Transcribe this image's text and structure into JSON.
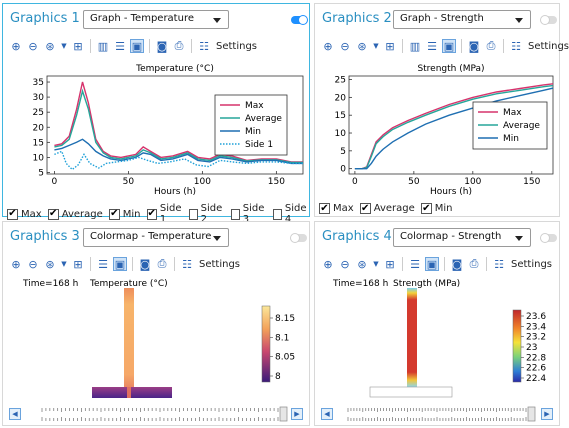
{
  "panels": {
    "g1": {
      "title": "Graphics 1",
      "dropdown": "Graph - Temperature",
      "toggle": "on",
      "checkboxes": [
        {
          "label": "Max",
          "checked": true
        },
        {
          "label": "Average",
          "checked": true
        },
        {
          "label": "Min",
          "checked": true
        },
        {
          "label": "Side 1",
          "checked": true
        },
        {
          "label": "Side 2",
          "checked": false
        },
        {
          "label": "Side 3",
          "checked": false
        },
        {
          "label": "Side 4",
          "checked": false
        }
      ]
    },
    "g2": {
      "title": "Graphics 2",
      "dropdown": "Graph - Strength",
      "toggle": "off",
      "checkboxes": [
        {
          "label": "Max",
          "checked": true
        },
        {
          "label": "Average",
          "checked": true
        },
        {
          "label": "Min",
          "checked": true
        }
      ]
    },
    "g3": {
      "title": "Graphics 3",
      "dropdown": "Colormap - Temperature",
      "toggle": "off",
      "time_label": "Time=168 h",
      "plot_label": "Temperature (°C)",
      "colorbar_ticks": [
        "8.15",
        "8.1",
        "8.05",
        "8"
      ]
    },
    "g4": {
      "title": "Graphics 4",
      "dropdown": "Colormap - Strength",
      "toggle": "off",
      "time_label": "Time=168 h",
      "plot_label": "Strength (MPa)",
      "colorbar_ticks": [
        "23.6",
        "23.4",
        "23.2",
        "23",
        "22.8",
        "22.6",
        "22.4"
      ]
    }
  },
  "toolbar": {
    "settings_label": "Settings"
  },
  "icons": [
    "zoom-in-icon",
    "zoom-out-icon",
    "zoom-box-icon",
    "zoom-extents-icon",
    "grid-icon",
    "legend-icon",
    "scene-light-icon",
    "camera-icon",
    "print-icon",
    "settings-icon",
    "play-back-icon",
    "play-forward-icon"
  ],
  "colors": {
    "accent": "#2a8fc1",
    "max": "#d6336c",
    "average": "#26a69a",
    "min": "#1f6fb2",
    "side1": "#1ea0d8"
  },
  "chart_data": [
    {
      "type": "line",
      "title": "Temperature (°C)",
      "xlabel": "Hours (h)",
      "ylabel": "",
      "xlim": [
        -5,
        168
      ],
      "ylim": [
        4.5,
        37
      ],
      "xticks": [
        0,
        50,
        100,
        150
      ],
      "yticks": [
        5,
        10,
        15,
        20,
        25,
        30,
        35
      ],
      "legend": "right",
      "series": [
        {
          "name": "Max",
          "color": "#d6336c",
          "x": [
            0,
            5,
            10,
            15,
            19,
            23,
            28,
            33,
            38,
            45,
            55,
            60,
            65,
            72,
            80,
            90,
            97,
            105,
            112,
            120,
            130,
            140,
            150,
            160,
            168
          ],
          "y": [
            14,
            14.5,
            17,
            26,
            35,
            28,
            16,
            12,
            10.5,
            10,
            11,
            13.5,
            12,
            10,
            10.5,
            12,
            10,
            9.5,
            11,
            10.5,
            9,
            9.5,
            9.5,
            8.5,
            8.5
          ]
        },
        {
          "name": "Average",
          "color": "#26a69a",
          "x": [
            0,
            5,
            10,
            15,
            19,
            23,
            28,
            33,
            38,
            45,
            55,
            60,
            65,
            72,
            80,
            90,
            97,
            105,
            112,
            120,
            130,
            140,
            150,
            160,
            168
          ],
          "y": [
            13.5,
            14,
            16,
            24,
            32,
            26,
            15,
            11.5,
            10,
            9.5,
            10.5,
            12.5,
            11.5,
            9.5,
            10,
            11.5,
            9.5,
            9,
            10.5,
            10,
            8.8,
            9.2,
            9.2,
            8.3,
            8.3
          ]
        },
        {
          "name": "Min",
          "color": "#1f6fb2",
          "x": [
            0,
            5,
            10,
            15,
            19,
            23,
            28,
            33,
            38,
            45,
            55,
            60,
            65,
            72,
            80,
            90,
            97,
            105,
            112,
            120,
            130,
            140,
            150,
            160,
            168
          ],
          "y": [
            12.5,
            13,
            14,
            15,
            16,
            14.5,
            12,
            10.5,
            9.5,
            9,
            10,
            11.5,
            11,
            9,
            9.5,
            11,
            9,
            8.5,
            10,
            9.5,
            8.5,
            9,
            9,
            8,
            8
          ]
        },
        {
          "name": "Side 1",
          "color": "#1ea0d8",
          "x": [
            0,
            5,
            8,
            12,
            16,
            20,
            24,
            30,
            35,
            42,
            50,
            57,
            63,
            70,
            78,
            88,
            96,
            104,
            112,
            120,
            130,
            140,
            150,
            160,
            168
          ],
          "y": [
            11,
            12,
            8,
            6,
            7.5,
            11,
            8,
            6.5,
            8,
            8.5,
            9,
            10,
            9,
            8,
            8.5,
            9.5,
            7.5,
            7,
            9,
            8.5,
            8,
            8.5,
            8.5,
            8,
            8
          ]
        }
      ]
    },
    {
      "type": "line",
      "title": "Strength (MPa)",
      "xlabel": "Hours (h)",
      "ylabel": "",
      "xlim": [
        -5,
        168
      ],
      "ylim": [
        -1.5,
        26
      ],
      "xticks": [
        0,
        50,
        100,
        150
      ],
      "yticks": [
        0,
        5,
        10,
        15,
        20,
        25
      ],
      "legend": "right",
      "series": [
        {
          "name": "Max",
          "color": "#d6336c",
          "x": [
            0,
            6,
            10,
            14,
            18,
            24,
            32,
            45,
            60,
            80,
            100,
            120,
            140,
            160,
            168
          ],
          "y": [
            0,
            0,
            0.5,
            4,
            7.5,
            9.5,
            11.5,
            13.5,
            15.5,
            18,
            20,
            21.5,
            22.5,
            23.5,
            23.8
          ]
        },
        {
          "name": "Average",
          "color": "#26a69a",
          "x": [
            0,
            6,
            10,
            14,
            18,
            24,
            32,
            45,
            60,
            80,
            100,
            120,
            140,
            160,
            168
          ],
          "y": [
            0,
            0,
            0.3,
            3.5,
            7,
            9,
            11,
            13,
            15,
            17.5,
            19.5,
            21,
            22,
            23,
            23.3
          ]
        },
        {
          "name": "Min",
          "color": "#1f6fb2",
          "x": [
            0,
            6,
            10,
            14,
            18,
            24,
            32,
            45,
            60,
            80,
            100,
            120,
            140,
            160,
            168
          ],
          "y": [
            0,
            0,
            0,
            1.5,
            3.5,
            5.5,
            7.5,
            10,
            12.5,
            15,
            17,
            19,
            20.5,
            22,
            22.6
          ]
        }
      ]
    }
  ]
}
